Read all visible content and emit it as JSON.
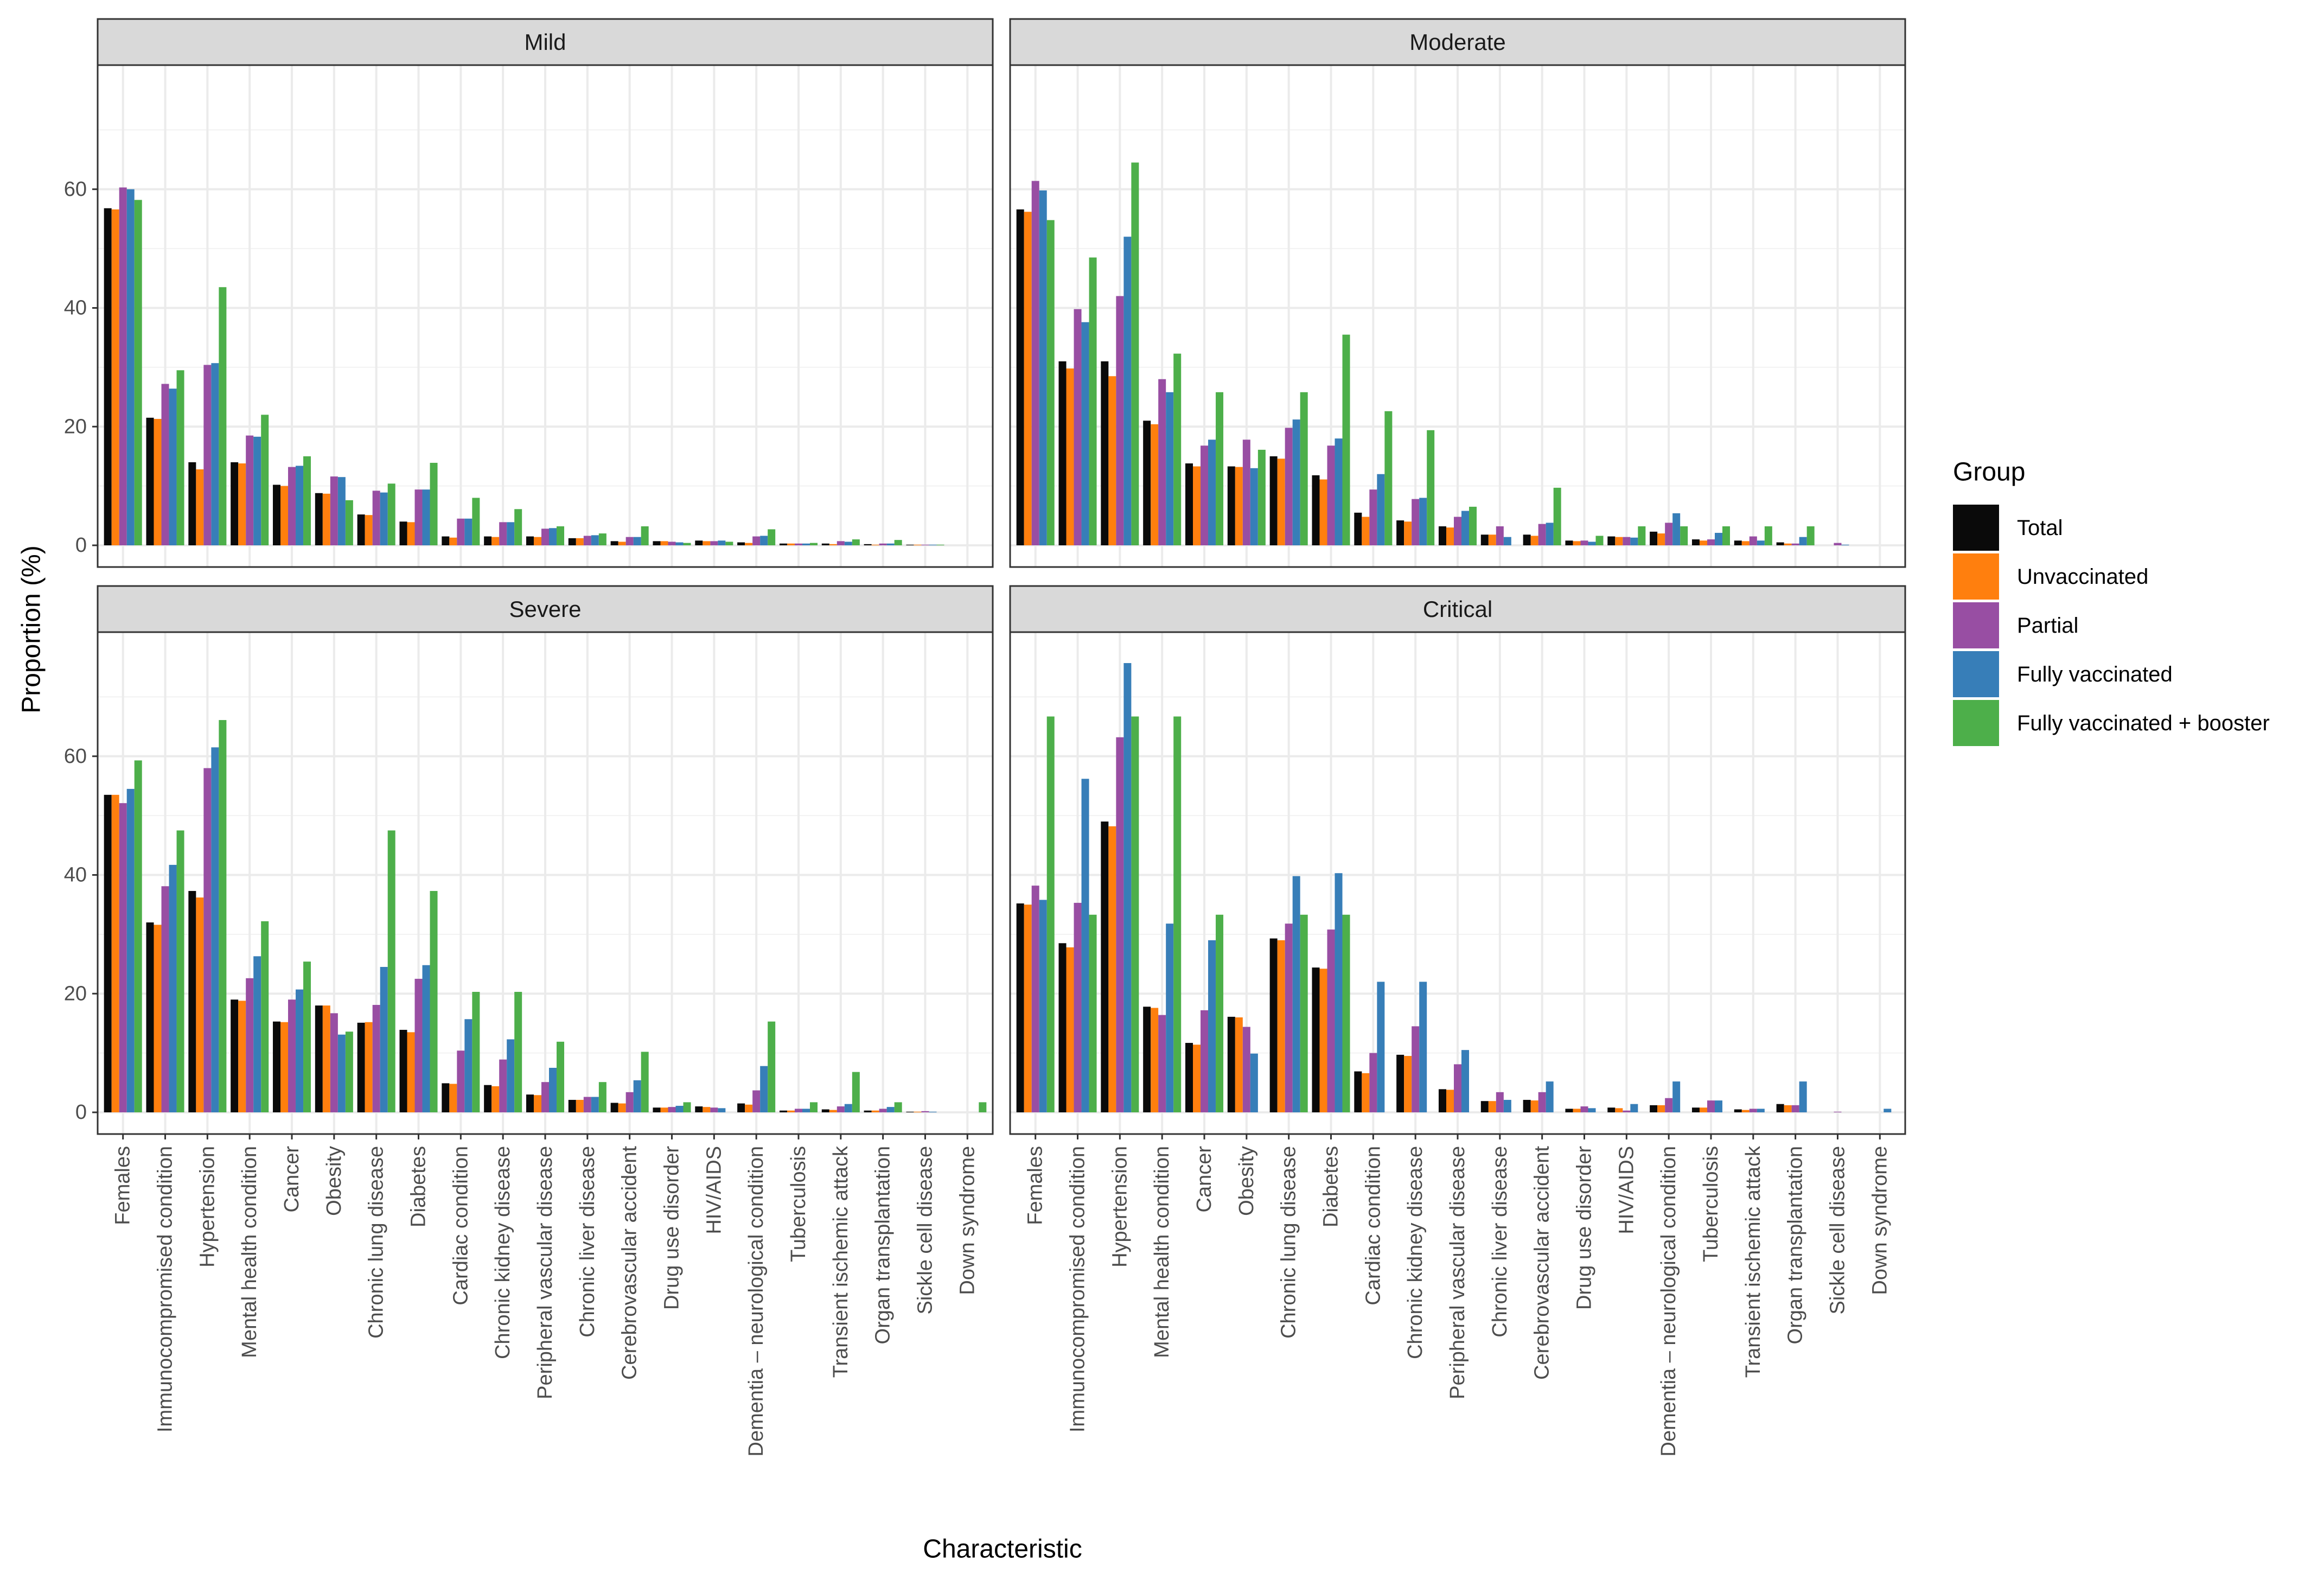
{
  "chart_data": {
    "type": "bar",
    "layout": "facet-grid 2x2",
    "xlabel": "Characteristic",
    "ylabel": "Proportion (%)",
    "ylim": [
      0,
      80
    ],
    "yticks": [
      0,
      20,
      40,
      60
    ],
    "legend": {
      "title": "Group",
      "position": "right",
      "entries": [
        "Total",
        "Unvaccinated",
        "Partial",
        "Fully vaccinated",
        "Fully vaccinated + booster"
      ]
    },
    "colors": {
      "Total": "#0a0a0a",
      "Unvaccinated": "#ff7f0e",
      "Partial": "#984ea3",
      "Fully vaccinated": "#377eb8",
      "Fully vaccinated + booster": "#4daf4a"
    },
    "categories": [
      "Females",
      "Immunocompromised condition",
      "Hypertension",
      "Mental health condition",
      "Cancer",
      "Obesity",
      "Chronic lung disease",
      "Diabetes",
      "Cardiac condition",
      "Chronic kidney disease",
      "Peripheral vascular disease",
      "Chronic liver disease",
      "Cerebrovascular accident",
      "Drug use disorder",
      "HIV/AIDS",
      "Dementia – neurological condition",
      "Tuberculosis",
      "Transient ischemic attack",
      "Organ transplantation",
      "Sickle cell disease",
      "Down syndrome"
    ],
    "panels": [
      {
        "title": "Mild",
        "series": [
          {
            "name": "Total",
            "values": [
              56.8,
              21.5,
              14.0,
              14.0,
              10.2,
              8.8,
              5.2,
              4.0,
              1.5,
              1.5,
              1.5,
              1.2,
              0.7,
              0.7,
              0.8,
              0.5,
              0.3,
              0.3,
              0.2,
              0.1,
              0.0
            ]
          },
          {
            "name": "Unvaccinated",
            "values": [
              56.6,
              21.3,
              12.8,
              13.8,
              10.0,
              8.7,
              5.1,
              3.9,
              1.3,
              1.4,
              1.4,
              1.2,
              0.6,
              0.7,
              0.7,
              0.4,
              0.3,
              0.2,
              0.1,
              0.1,
              0.0
            ]
          },
          {
            "name": "Partial",
            "values": [
              60.3,
              27.2,
              30.4,
              18.5,
              13.2,
              11.6,
              9.2,
              9.4,
              4.5,
              3.9,
              2.8,
              1.6,
              1.4,
              0.6,
              0.7,
              1.5,
              0.3,
              0.7,
              0.3,
              0.1,
              0.0
            ]
          },
          {
            "name": "Fully vaccinated",
            "values": [
              60.0,
              26.4,
              30.7,
              18.3,
              13.4,
              11.5,
              8.9,
              9.4,
              4.5,
              3.9,
              2.9,
              1.7,
              1.4,
              0.5,
              0.8,
              1.6,
              0.3,
              0.6,
              0.3,
              0.1,
              0.0
            ]
          },
          {
            "name": "Fully vaccinated + booster",
            "values": [
              58.2,
              29.5,
              43.5,
              22.0,
              15.0,
              7.6,
              10.4,
              13.9,
              8.0,
              6.1,
              3.2,
              2.0,
              3.2,
              0.4,
              0.6,
              2.7,
              0.4,
              1.0,
              0.9,
              0.1,
              0.0
            ]
          }
        ]
      },
      {
        "title": "Moderate",
        "series": [
          {
            "name": "Total",
            "values": [
              56.6,
              31.0,
              31.0,
              21.0,
              13.8,
              13.3,
              15.0,
              11.8,
              5.5,
              4.2,
              3.2,
              1.8,
              1.8,
              0.8,
              1.5,
              2.3,
              1.0,
              0.8,
              0.5,
              0.0,
              0.0
            ]
          },
          {
            "name": "Unvaccinated",
            "values": [
              56.2,
              29.8,
              28.5,
              20.4,
              13.3,
              13.2,
              14.6,
              11.1,
              4.8,
              4.0,
              3.0,
              1.8,
              1.6,
              0.7,
              1.4,
              2.0,
              0.8,
              0.7,
              0.3,
              0.0,
              0.0
            ]
          },
          {
            "name": "Partial",
            "values": [
              61.4,
              39.8,
              42.0,
              28.0,
              16.8,
              17.8,
              19.8,
              16.8,
              9.4,
              7.8,
              4.8,
              3.2,
              3.6,
              0.8,
              1.4,
              3.8,
              1.0,
              1.5,
              0.3,
              0.4,
              0.0
            ]
          },
          {
            "name": "Fully vaccinated",
            "values": [
              59.8,
              37.6,
              52.0,
              25.8,
              17.8,
              13.0,
              21.2,
              18.0,
              12.0,
              8.0,
              5.8,
              1.4,
              3.8,
              0.6,
              1.3,
              5.4,
              2.1,
              0.8,
              1.4,
              0.1,
              0.0
            ]
          },
          {
            "name": "Fully vaccinated + booster",
            "values": [
              54.8,
              48.5,
              64.5,
              32.3,
              25.8,
              16.1,
              25.8,
              35.5,
              22.6,
              19.4,
              6.5,
              0.0,
              9.7,
              1.6,
              3.2,
              3.2,
              3.2,
              3.2,
              3.2,
              0.0,
              0.0
            ]
          }
        ]
      },
      {
        "title": "Severe",
        "series": [
          {
            "name": "Total",
            "values": [
              53.5,
              32.0,
              37.3,
              19.0,
              15.3,
              18.0,
              15.1,
              13.9,
              4.9,
              4.6,
              3.0,
              2.1,
              1.6,
              0.8,
              1.0,
              1.5,
              0.3,
              0.5,
              0.3,
              0.1,
              0.0
            ]
          },
          {
            "name": "Unvaccinated",
            "values": [
              53.5,
              31.6,
              36.2,
              18.8,
              15.2,
              18.0,
              15.2,
              13.5,
              4.8,
              4.4,
              2.9,
              2.1,
              1.5,
              0.8,
              0.9,
              1.3,
              0.3,
              0.4,
              0.3,
              0.1,
              0.0
            ]
          },
          {
            "name": "Partial",
            "values": [
              52.1,
              38.1,
              58.0,
              22.6,
              19.0,
              16.7,
              18.1,
              22.5,
              10.4,
              8.9,
              5.1,
              2.6,
              3.4,
              0.9,
              0.8,
              3.7,
              0.6,
              1.0,
              0.6,
              0.2,
              0.0
            ]
          },
          {
            "name": "Fully vaccinated",
            "values": [
              54.5,
              41.7,
              61.5,
              26.3,
              20.7,
              13.1,
              24.5,
              24.8,
              15.7,
              12.3,
              7.5,
              2.6,
              5.4,
              1.1,
              0.7,
              7.8,
              0.6,
              1.4,
              0.9,
              0.1,
              0.0
            ]
          },
          {
            "name": "Fully vaccinated + booster",
            "values": [
              59.3,
              47.5,
              66.1,
              32.2,
              25.4,
              13.6,
              47.5,
              37.3,
              20.3,
              20.3,
              11.9,
              5.1,
              10.2,
              1.7,
              0.0,
              15.3,
              1.7,
              6.8,
              1.7,
              0.0,
              1.7
            ]
          }
        ]
      },
      {
        "title": "Critical",
        "series": [
          {
            "name": "Total",
            "values": [
              35.2,
              28.5,
              49.0,
              17.8,
              11.7,
              16.1,
              29.3,
              24.4,
              6.9,
              9.7,
              3.9,
              1.9,
              2.1,
              0.6,
              0.8,
              1.2,
              0.8,
              0.5,
              1.4,
              0.0,
              0.0
            ]
          },
          {
            "name": "Unvaccinated",
            "values": [
              35.0,
              27.8,
              48.2,
              17.6,
              11.4,
              16.0,
              29.0,
              24.2,
              6.6,
              9.5,
              3.8,
              1.9,
              2.0,
              0.6,
              0.7,
              1.2,
              0.8,
              0.4,
              1.2,
              0.0,
              0.0
            ]
          },
          {
            "name": "Partial",
            "values": [
              38.2,
              35.3,
              63.2,
              16.4,
              17.2,
              14.4,
              31.8,
              30.8,
              10.0,
              14.5,
              8.1,
              3.4,
              3.4,
              1.0,
              0.3,
              2.4,
              2.0,
              0.6,
              1.2,
              0.1,
              0.0
            ]
          },
          {
            "name": "Fully vaccinated",
            "values": [
              35.8,
              56.2,
              75.7,
              31.8,
              29.0,
              9.9,
              39.8,
              40.3,
              22.0,
              22.0,
              10.5,
              2.1,
              5.2,
              0.7,
              1.4,
              5.2,
              2.0,
              0.6,
              5.2,
              0.0,
              0.6
            ]
          },
          {
            "name": "Fully vaccinated + booster",
            "values": [
              66.7,
              33.3,
              66.7,
              66.7,
              33.3,
              0.0,
              33.3,
              33.3,
              0.0,
              0.0,
              0.0,
              0.0,
              0.0,
              0.0,
              0.0,
              0.0,
              0.0,
              0.0,
              0.0,
              0.0,
              0.0
            ]
          }
        ]
      }
    ]
  }
}
